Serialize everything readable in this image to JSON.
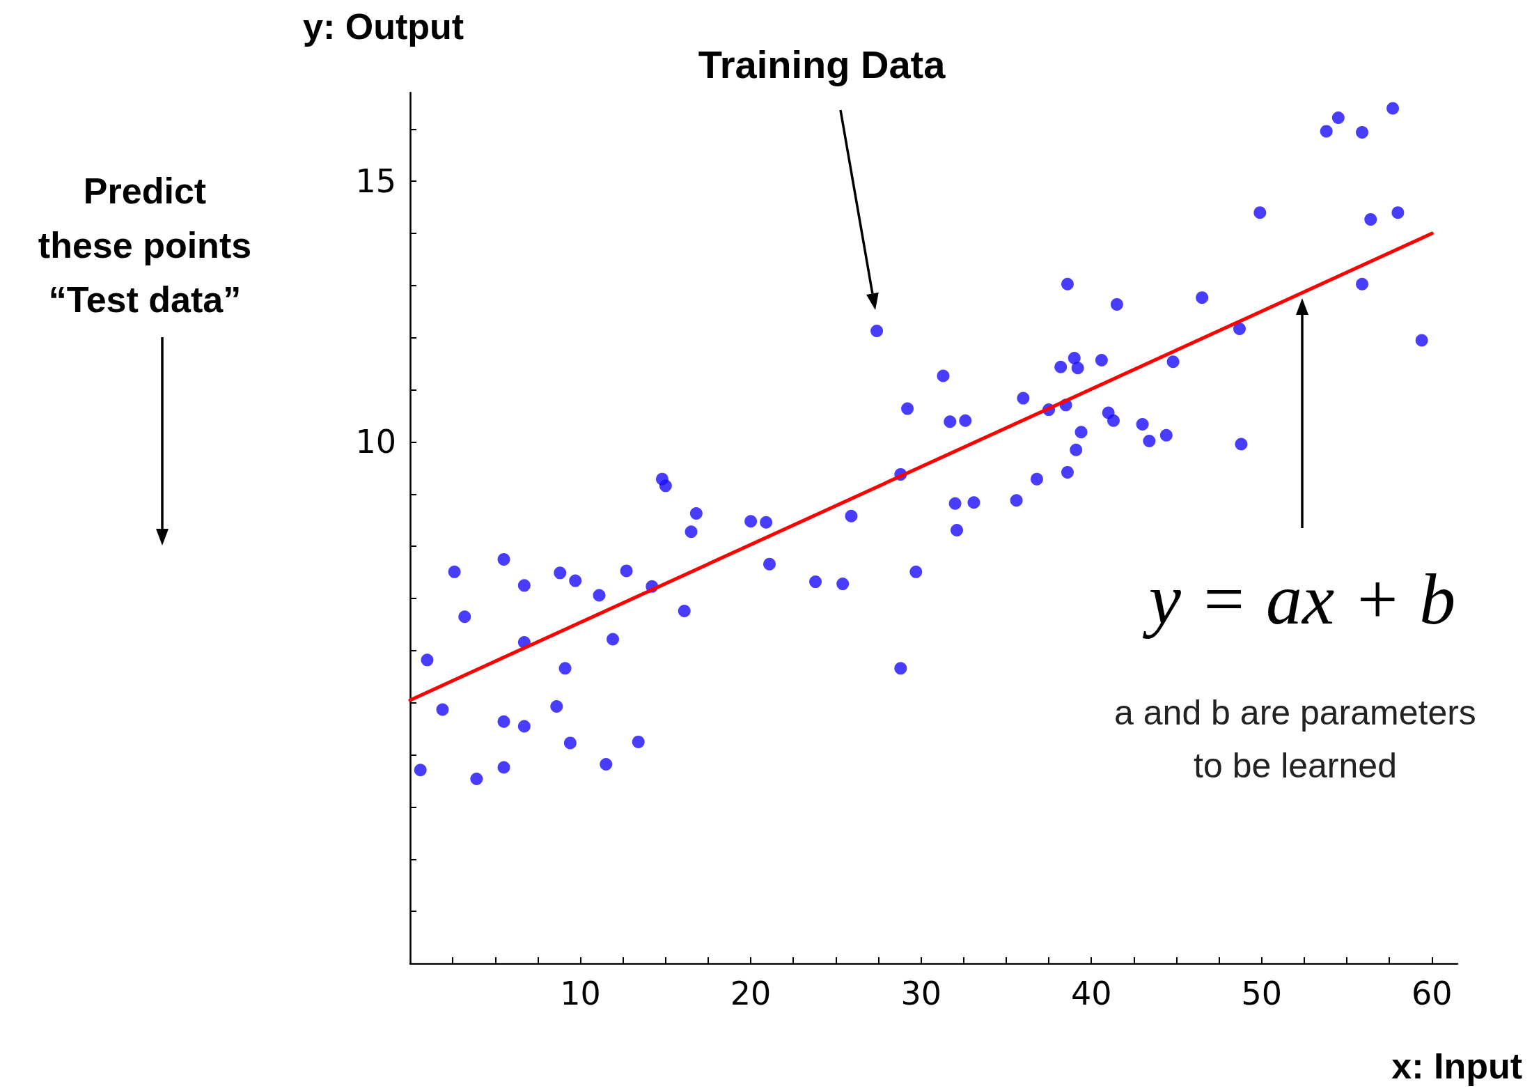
{
  "chart_data": {
    "type": "scatter",
    "xlabel": "x: Input",
    "ylabel": "y: Output",
    "xlim": [
      0,
      61.5
    ],
    "ylim": [
      0,
      16.7
    ],
    "xticks": [
      {
        "value": 2.5,
        "label": null
      },
      {
        "value": 5,
        "label": null
      },
      {
        "value": 7.5,
        "label": null
      },
      10,
      {
        "value": 12.5,
        "label": null
      },
      {
        "value": 15,
        "label": null
      },
      {
        "value": 17.5,
        "label": null
      },
      20,
      {
        "value": 22.5,
        "label": null
      },
      {
        "value": 25,
        "label": null
      },
      {
        "value": 27.5,
        "label": null
      },
      30,
      {
        "value": 32.5,
        "label": null
      },
      {
        "value": 35,
        "label": null
      },
      {
        "value": 37.5,
        "label": null
      },
      40,
      {
        "value": 42.5,
        "label": null
      },
      {
        "value": 45,
        "label": null
      },
      {
        "value": 47.5,
        "label": null
      },
      50,
      {
        "value": 52.5,
        "label": null
      },
      {
        "value": 55,
        "label": null
      },
      {
        "value": 57.5,
        "label": null
      },
      60
    ],
    "yticks": [
      {
        "value": 1,
        "label": null
      },
      {
        "value": 2,
        "label": null
      },
      {
        "value": 3,
        "label": null
      },
      {
        "value": 4,
        "label": null
      },
      {
        "value": 5,
        "label": null
      },
      {
        "value": 6,
        "label": null
      },
      {
        "value": 7,
        "label": null
      },
      {
        "value": 8,
        "label": null
      },
      {
        "value": 9,
        "label": null
      },
      10,
      {
        "value": 11,
        "label": null
      },
      {
        "value": 12,
        "label": null
      },
      {
        "value": 13,
        "label": null
      },
      {
        "value": 14,
        "label": null
      },
      15,
      {
        "value": 16,
        "label": null
      }
    ],
    "grid": false,
    "series": [
      {
        "type": "scatter",
        "color": "#1a0dff",
        "marker": "circle",
        "x": [
          0.6,
          1.0,
          1.9,
          2.6,
          3.2,
          3.9,
          5.5,
          5.5,
          5.5,
          6.7,
          6.7,
          6.7,
          8.6,
          8.8,
          9.1,
          9.4,
          9.7,
          11.1,
          11.5,
          11.9,
          12.7,
          13.4,
          14.2,
          14.8,
          15.0,
          16.1,
          16.5,
          16.8,
          20.0,
          20.9,
          21.1,
          23.8,
          25.4,
          25.9,
          27.4,
          28.8,
          28.8,
          29.2,
          29.7,
          31.3,
          31.7,
          32.0,
          32.1,
          32.6,
          33.1,
          35.6,
          36.0,
          36.8,
          37.5,
          38.2,
          38.5,
          38.6,
          38.6,
          39.0,
          39.1,
          39.2,
          39.4,
          40.6,
          41.0,
          41.3,
          41.5,
          43.0,
          43.4,
          44.4,
          44.8,
          46.5,
          48.7,
          48.8,
          49.9,
          53.8,
          54.5,
          55.9,
          55.9,
          56.4,
          57.7,
          58.0,
          59.4
        ],
        "values": [
          3.71,
          5.82,
          4.87,
          7.51,
          6.65,
          3.54,
          4.64,
          3.76,
          7.75,
          7.25,
          4.55,
          6.16,
          4.93,
          7.49,
          5.66,
          4.23,
          7.34,
          7.06,
          3.82,
          6.22,
          7.53,
          4.25,
          7.23,
          9.29,
          9.16,
          6.76,
          8.28,
          8.63,
          8.48,
          8.46,
          7.66,
          7.32,
          7.28,
          8.58,
          12.13,
          9.38,
          5.66,
          10.64,
          7.51,
          11.27,
          10.39,
          8.82,
          8.31,
          10.41,
          8.84,
          8.88,
          10.84,
          9.29,
          10.62,
          11.44,
          10.71,
          13.03,
          9.42,
          11.61,
          9.85,
          11.42,
          10.19,
          11.57,
          10.56,
          10.41,
          12.64,
          10.34,
          10.02,
          10.13,
          11.54,
          12.77,
          12.17,
          9.96,
          14.4,
          15.96,
          16.22,
          15.94,
          13.03,
          14.27,
          16.4,
          14.4,
          11.95
        ]
      },
      {
        "type": "line",
        "color": "#ff0000",
        "marker": "none",
        "line_style": "solid",
        "x": [
          0,
          60
        ],
        "values": [
          5.05,
          14.0
        ]
      }
    ],
    "annotations": [
      "Training Data",
      "Predict\nthese points\n“Test data”",
      "y = ax + b",
      "a and b are parameters\nto be learned"
    ]
  }
}
